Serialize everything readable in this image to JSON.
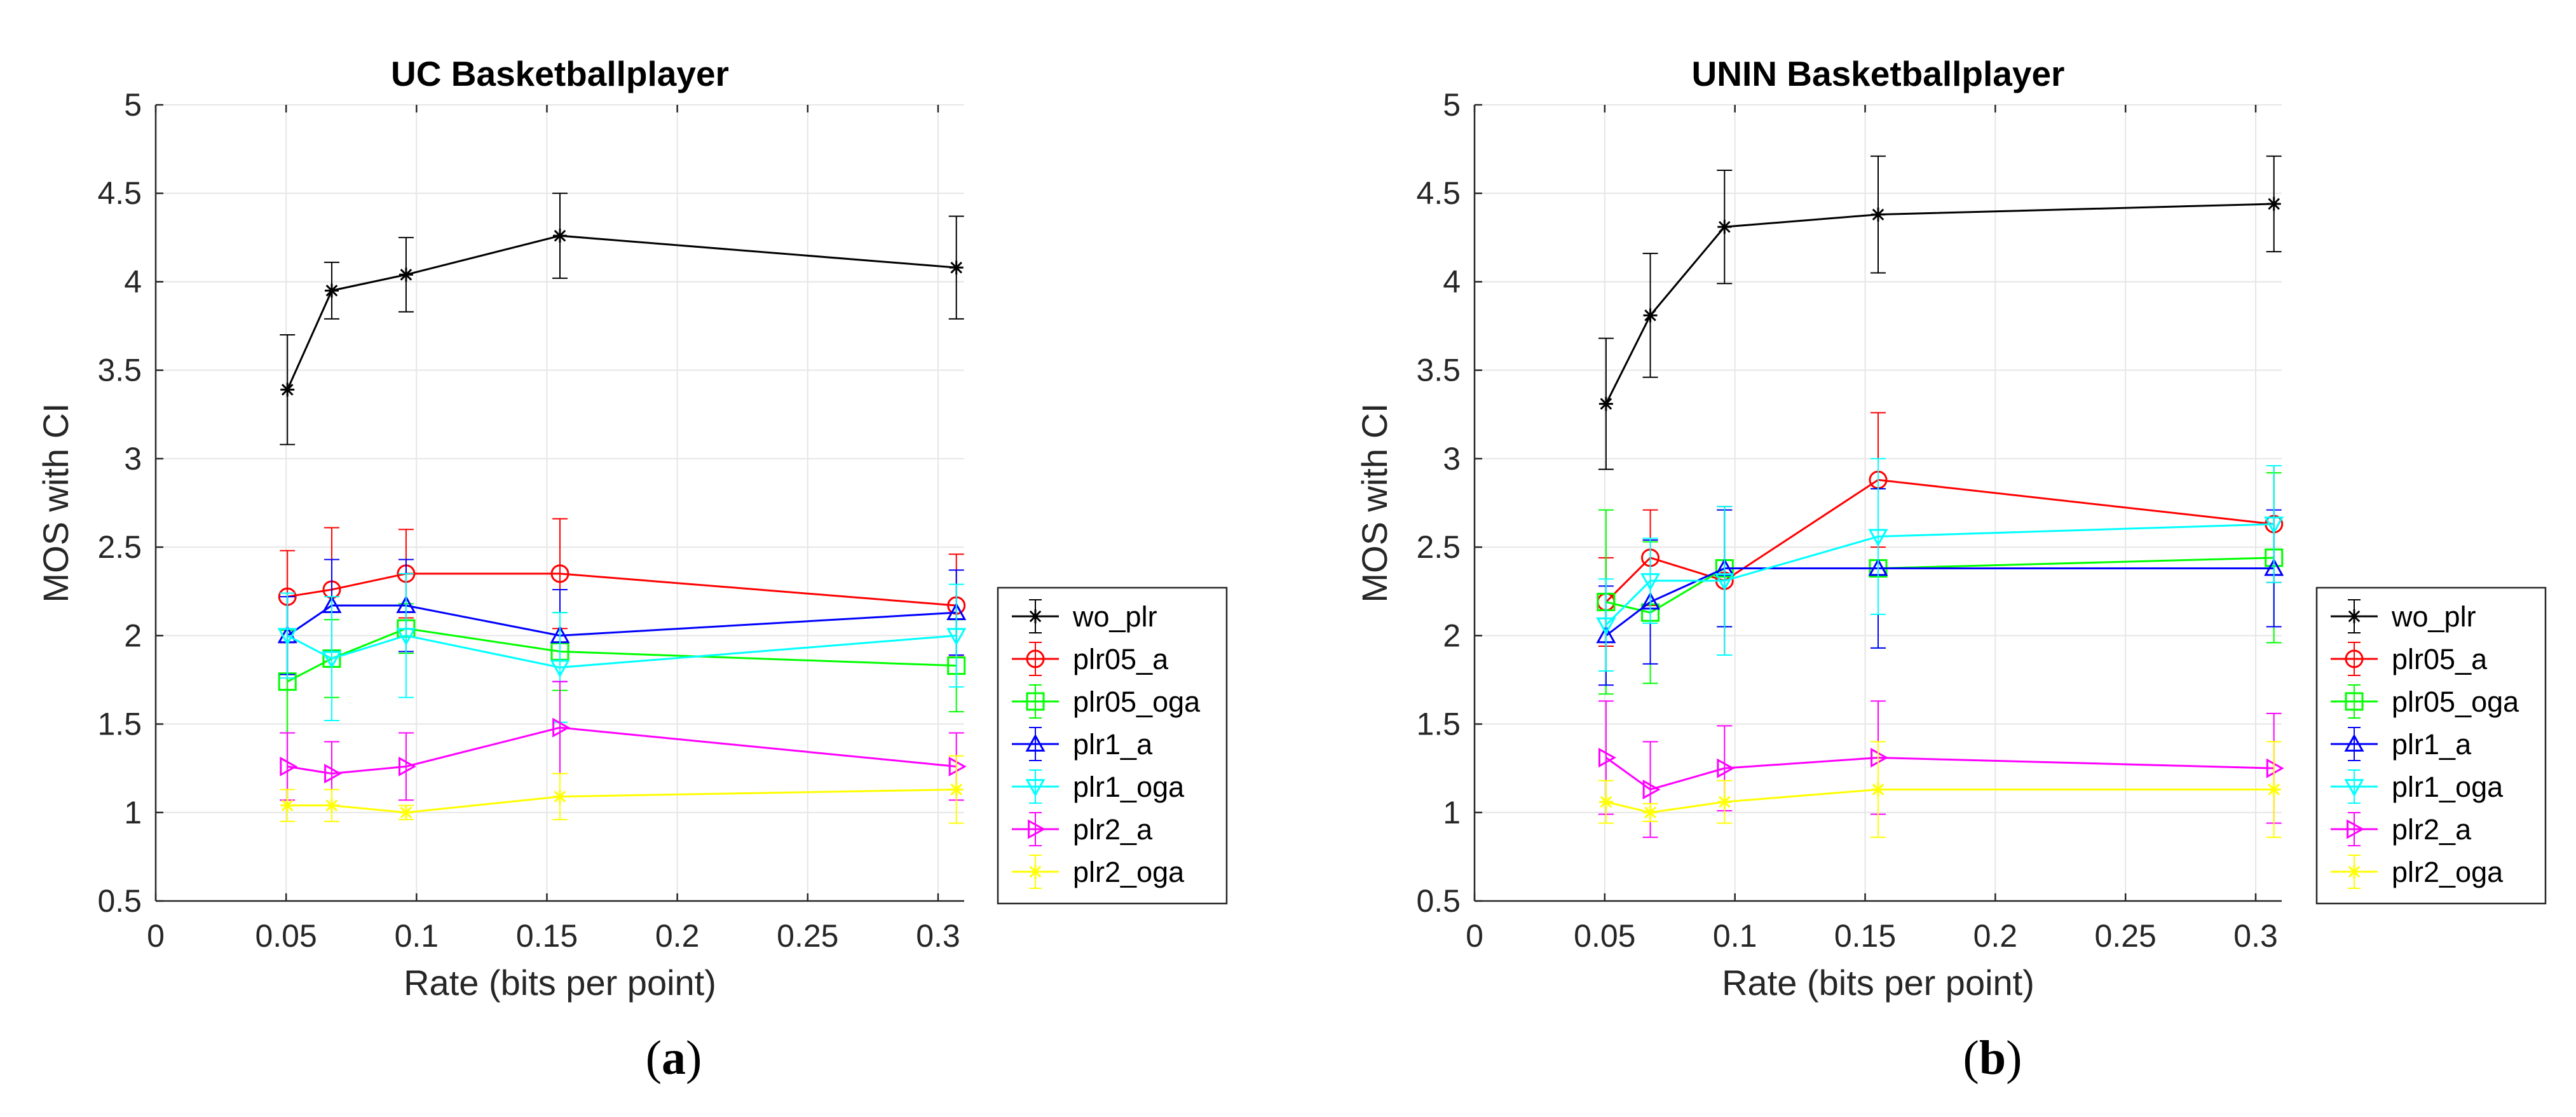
{
  "figure": {
    "captions": [
      {
        "open": "(",
        "letter": "a",
        "close": ")"
      },
      {
        "open": "(",
        "letter": "b",
        "close": ")"
      }
    ]
  },
  "chart_data": [
    {
      "type": "line",
      "title": "UC Basketballplayer",
      "xlabel": "Rate (bits per point)",
      "ylabel": "MOS with CI",
      "xlim": [
        0,
        0.31
      ],
      "ylim": [
        0.5,
        5
      ],
      "xticks": [
        0,
        0.05,
        0.1,
        0.15,
        0.2,
        0.25,
        0.3
      ],
      "xtick_labels": [
        "0",
        "0.05",
        "0.1",
        "0.15",
        "0.2",
        "0.25",
        "0.3"
      ],
      "yticks": [
        0.5,
        1,
        1.5,
        2,
        2.5,
        3,
        3.5,
        4,
        4.5,
        5
      ],
      "ytick_labels": [
        "0.5",
        "1",
        "1.5",
        "2",
        "2.5",
        "3",
        "3.5",
        "4",
        "4.5",
        "5"
      ],
      "grid": true,
      "legend_position": "right",
      "x": [
        0.0505,
        0.0675,
        0.096,
        0.155,
        0.307
      ],
      "series": [
        {
          "name": "wo_plr",
          "color": "#000000",
          "marker": "star",
          "values": [
            3.39,
            3.95,
            4.04,
            4.26,
            4.08
          ],
          "ci": [
            0.31,
            0.16,
            0.21,
            0.24,
            0.29
          ]
        },
        {
          "name": "plr05_a",
          "color": "#ff0000",
          "marker": "circle",
          "values": [
            2.22,
            2.26,
            2.35,
            2.35,
            2.17
          ],
          "ci": [
            0.26,
            0.35,
            0.25,
            0.31,
            0.29
          ]
        },
        {
          "name": "plr05_oga",
          "color": "#00ff00",
          "marker": "square",
          "values": [
            1.74,
            1.87,
            2.04,
            1.91,
            1.83
          ],
          "ci": [
            0.29,
            0.22,
            0.14,
            0.22,
            0.26
          ]
        },
        {
          "name": "plr1_a",
          "color": "#0000ff",
          "marker": "triangle-up",
          "values": [
            2.0,
            2.17,
            2.17,
            2.0,
            2.13
          ],
          "ci": [
            0.22,
            0.26,
            0.26,
            0.26,
            0.24
          ]
        },
        {
          "name": "plr1_oga",
          "color": "#00ffff",
          "marker": "triangle-down",
          "values": [
            2.0,
            1.87,
            2.0,
            1.82,
            2.0
          ],
          "ci": [
            0.24,
            0.35,
            0.35,
            0.31,
            0.29
          ]
        },
        {
          "name": "plr2_a",
          "color": "#ff00ff",
          "marker": "triangle-right",
          "values": [
            1.26,
            1.22,
            1.26,
            1.48,
            1.26
          ],
          "ci": [
            0.19,
            0.18,
            0.19,
            0.26,
            0.19
          ]
        },
        {
          "name": "plr2_oga",
          "color": "#ffff00",
          "marker": "star",
          "values": [
            1.04,
            1.04,
            1.0,
            1.09,
            1.13
          ],
          "ci": [
            0.09,
            0.09,
            0.04,
            0.13,
            0.19
          ]
        }
      ]
    },
    {
      "type": "line",
      "title": "UNIN Basketballplayer",
      "xlabel": "Rate (bits per point)",
      "ylabel": "MOS with CI",
      "xlim": [
        0,
        0.31
      ],
      "ylim": [
        0.5,
        5
      ],
      "xticks": [
        0,
        0.05,
        0.1,
        0.15,
        0.2,
        0.25,
        0.3
      ],
      "xtick_labels": [
        "0",
        "0.05",
        "0.1",
        "0.15",
        "0.2",
        "0.25",
        "0.3"
      ],
      "yticks": [
        0.5,
        1,
        1.5,
        2,
        2.5,
        3,
        3.5,
        4,
        4.5,
        5
      ],
      "ytick_labels": [
        "0.5",
        "1",
        "1.5",
        "2",
        "2.5",
        "3",
        "3.5",
        "4",
        "4.5",
        "5"
      ],
      "grid": true,
      "legend_position": "right",
      "x": [
        0.0505,
        0.0675,
        0.096,
        0.155,
        0.307
      ],
      "series": [
        {
          "name": "wo_plr",
          "color": "#000000",
          "marker": "star",
          "values": [
            3.31,
            3.81,
            4.31,
            4.38,
            4.44
          ],
          "ci": [
            0.37,
            0.35,
            0.32,
            0.33,
            0.27
          ]
        },
        {
          "name": "plr05_a",
          "color": "#ff0000",
          "marker": "circle",
          "values": [
            2.19,
            2.44,
            2.31,
            2.88,
            2.63
          ],
          "ci": [
            0.25,
            0.27,
            0.42,
            0.38,
            0.33
          ]
        },
        {
          "name": "plr05_oga",
          "color": "#00ff00",
          "marker": "square",
          "values": [
            2.19,
            2.13,
            2.38,
            2.38,
            2.44
          ],
          "ci": [
            0.52,
            0.4,
            0.33,
            0.45,
            0.48
          ]
        },
        {
          "name": "plr1_a",
          "color": "#0000ff",
          "marker": "triangle-up",
          "values": [
            2.0,
            2.19,
            2.38,
            2.38,
            2.38
          ],
          "ci": [
            0.28,
            0.35,
            0.33,
            0.45,
            0.33
          ]
        },
        {
          "name": "plr1_oga",
          "color": "#00ffff",
          "marker": "triangle-down",
          "values": [
            2.06,
            2.31,
            2.31,
            2.56,
            2.63
          ],
          "ci": [
            0.26,
            0.24,
            0.42,
            0.44,
            0.33
          ]
        },
        {
          "name": "plr2_a",
          "color": "#ff00ff",
          "marker": "triangle-right",
          "values": [
            1.31,
            1.13,
            1.25,
            1.31,
            1.25
          ],
          "ci": [
            0.32,
            0.27,
            0.24,
            0.32,
            0.31
          ]
        },
        {
          "name": "plr2_oga",
          "color": "#ffff00",
          "marker": "star",
          "values": [
            1.06,
            1.0,
            1.06,
            1.13,
            1.13
          ],
          "ci": [
            0.12,
            0.05,
            0.12,
            0.27,
            0.27
          ]
        }
      ]
    }
  ]
}
